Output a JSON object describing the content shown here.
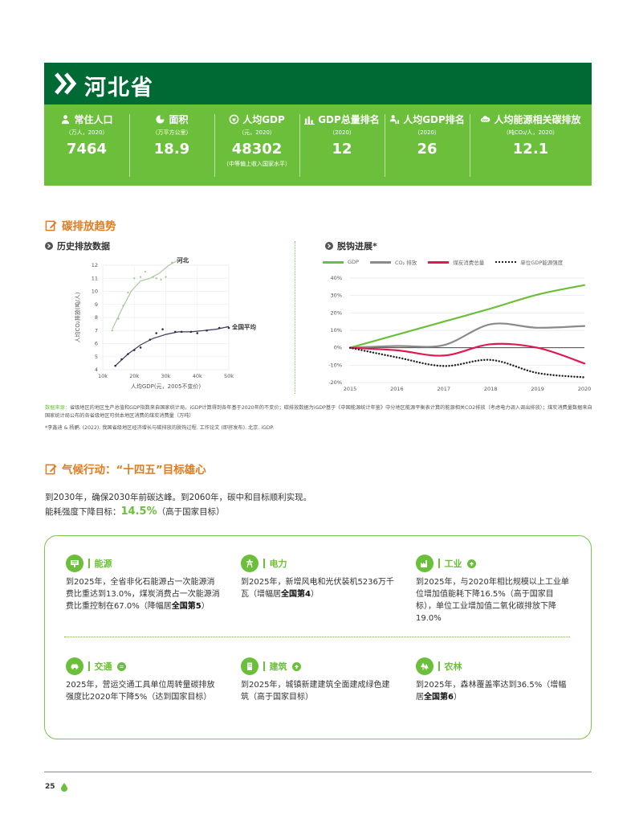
{
  "header": {
    "title": "河北省"
  },
  "stats": [
    {
      "icon": "people-icon",
      "label": "常住人口",
      "unit": "（万人，2020）",
      "value": "7464",
      "note": ""
    },
    {
      "icon": "pie-icon",
      "label": "面积",
      "unit": "（万平方公里）",
      "value": "18.9",
      "note": ""
    },
    {
      "icon": "coin-icon",
      "label": "人均GDP",
      "unit": "（元，2020）",
      "value": "48302",
      "note": "（中等偏上收入国家水平）"
    },
    {
      "icon": "bars-icon",
      "label": "GDP总量排名",
      "unit": "（2020）",
      "value": "12",
      "note": ""
    },
    {
      "icon": "person-rank-icon",
      "label": "人均GDP排名",
      "unit": "（2020）",
      "value": "26",
      "note": ""
    },
    {
      "icon": "co2-cloud-icon",
      "label": "人均能源相关碳排放",
      "unit": "（吨CO₂/人，2020）",
      "value": "12.1",
      "note": ""
    }
  ],
  "section1": {
    "title": "碳排放趋势",
    "left_sub": "历史排放数据",
    "right_sub": "脱钩进展*"
  },
  "chart_data": [
    {
      "type": "scatter",
      "xlabel": "人均GDP(元，2005不变价)",
      "ylabel": "人均CO₂排放(吨/人)",
      "xlim": [
        10000,
        50000
      ],
      "ylim": [
        4,
        12
      ],
      "x_ticks": [
        "10k",
        "20k",
        "30k",
        "40k",
        "50k"
      ],
      "y_ticks": [
        "4",
        "5",
        "6",
        "7",
        "8",
        "9",
        "10",
        "11",
        "12"
      ],
      "series": [
        {
          "name": "河北",
          "points": [
            [
              13000,
              7.0
            ],
            [
              15000,
              7.9
            ],
            [
              16500,
              8.9
            ],
            [
              18000,
              9.9
            ],
            [
              20000,
              11.0
            ],
            [
              22000,
              11.1
            ],
            [
              23500,
              11.5
            ],
            [
              26000,
              11.1
            ],
            [
              27000,
              11.0
            ],
            [
              28500,
              10.9
            ],
            [
              30000,
              11.1
            ],
            [
              32000,
              12.2
            ]
          ],
          "trend": [
            [
              13000,
              7.1
            ],
            [
              16000,
              8.6
            ],
            [
              19000,
              10.0
            ],
            [
              22000,
              10.8
            ],
            [
              25000,
              11.0
            ],
            [
              28000,
              11.4
            ],
            [
              31000,
              12.0
            ],
            [
              34000,
              12.4
            ]
          ]
        },
        {
          "name": "全国平均",
          "points": [
            [
              14000,
              4.3
            ],
            [
              16000,
              4.8
            ],
            [
              18000,
              5.2
            ],
            [
              20000,
              5.5
            ],
            [
              22000,
              5.7
            ],
            [
              25000,
              6.3
            ],
            [
              27000,
              6.8
            ],
            [
              29000,
              7.1
            ],
            [
              33000,
              6.9
            ],
            [
              35000,
              6.9
            ],
            [
              38000,
              6.9
            ],
            [
              40000,
              6.8
            ],
            [
              43000,
              7.0
            ],
            [
              47000,
              7.2
            ],
            [
              50000,
              7.2
            ]
          ],
          "trend": [
            [
              14000,
              4.3
            ],
            [
              18000,
              5.2
            ],
            [
              22000,
              5.9
            ],
            [
              26000,
              6.4
            ],
            [
              30000,
              6.7
            ],
            [
              34000,
              6.9
            ],
            [
              38000,
              6.9
            ],
            [
              42000,
              7.0
            ],
            [
              46000,
              7.1
            ],
            [
              50000,
              7.3
            ]
          ]
        }
      ]
    },
    {
      "type": "line",
      "x": [
        2015,
        2016,
        2017,
        2018,
        2019,
        2020
      ],
      "ylim": [
        -20,
        40
      ],
      "y_ticks": [
        "40%",
        "30%",
        "20%",
        "10%",
        "0%",
        "-10%",
        "-20%"
      ],
      "legend_position": "top",
      "series": [
        {
          "name": "GDP",
          "color": "#6bbf3a",
          "values": [
            0,
            7.5,
            15,
            22.5,
            30.5,
            36
          ]
        },
        {
          "name": "CO₂ 排放",
          "color": "#8a8a8a",
          "values": [
            0,
            1,
            1.5,
            13.5,
            11.5,
            12.5
          ]
        },
        {
          "name": "煤炭消费总量",
          "color": "#e0194f",
          "values": [
            0,
            -1.5,
            -4.5,
            2,
            0,
            -9
          ]
        },
        {
          "name": "单位GDP能源强度",
          "color": "#222222",
          "values": [
            0,
            -5.5,
            -10.5,
            -7,
            -14.5,
            -17
          ]
        }
      ]
    }
  ],
  "source": {
    "label": "数据来源：",
    "text": "省级地区的地区生产总值和GDP指数来自国家统计局，iGDP计算得到各年基于2020年的不变价；碳排放数据为iGDP基于《中国能源统计年鉴》中分地区能源平衡表计算的能源相关CO2排放（考虑电力调入调出排放）；煤炭消费量数据来自国家统计局公布的各省级地区可供本地区消费的煤炭消费量（万吨）",
    "ref": "*李鑫迪 & 杨鹂. (2022). 我国省级地区经济增长与碳排放的脱钩过程. 工作论文 (即将发布). 北京. iGDP."
  },
  "section2": {
    "title": "气候行动：“十四五”目标雄心",
    "line1": "到2030年，确保2030年前碳达峰。到2060年，碳中和目标顺利实现。",
    "line2_prefix": "能耗强度下降目标：",
    "line2_pct": "14.5%",
    "line2_suffix": "（高于国家目标）"
  },
  "targets": [
    {
      "icon": "energy-icon",
      "label": "能源",
      "badge": "",
      "pre": "到2025年，全省非化石能源占一次能源消费比重达到13.0%，煤炭消费占一次能源消费比重控制在67.0%（降幅居",
      "bold": "全国第5",
      "post": "）"
    },
    {
      "icon": "power-tower-icon",
      "label": "电力",
      "badge": "",
      "pre": "到2025年，新增风电和光伏装机5236万千瓦（增幅居",
      "bold": "全国第4",
      "post": "）"
    },
    {
      "icon": "factory-icon",
      "label": "工业",
      "badge": "up-arrow-icon",
      "pre": "到2025年，与2020年相比规模以上工业单位增加值能耗下降16.5%（高于国家目标），单位工业增加值二氧化碳排放下降19.0%",
      "bold": "",
      "post": ""
    },
    {
      "icon": "car-icon",
      "label": "交通",
      "badge": "equal-icon",
      "pre": "2025年，营运交通工具单位周转量碳排放强度比2020年下降5%（达到国家目标）",
      "bold": "",
      "post": ""
    },
    {
      "icon": "building-icon",
      "label": "建筑",
      "badge": "up-arrow-icon",
      "pre": "到2025年，城镇新建建筑全面建成绿色建筑（高于国家目标）",
      "bold": "",
      "post": ""
    },
    {
      "icon": "forest-icon",
      "label": "农林",
      "badge": "",
      "pre": "到2025年，森林覆盖率达到36.5%（增幅居",
      "bold": "全国第6",
      "post": "）"
    }
  ],
  "footer": {
    "page": "25"
  }
}
